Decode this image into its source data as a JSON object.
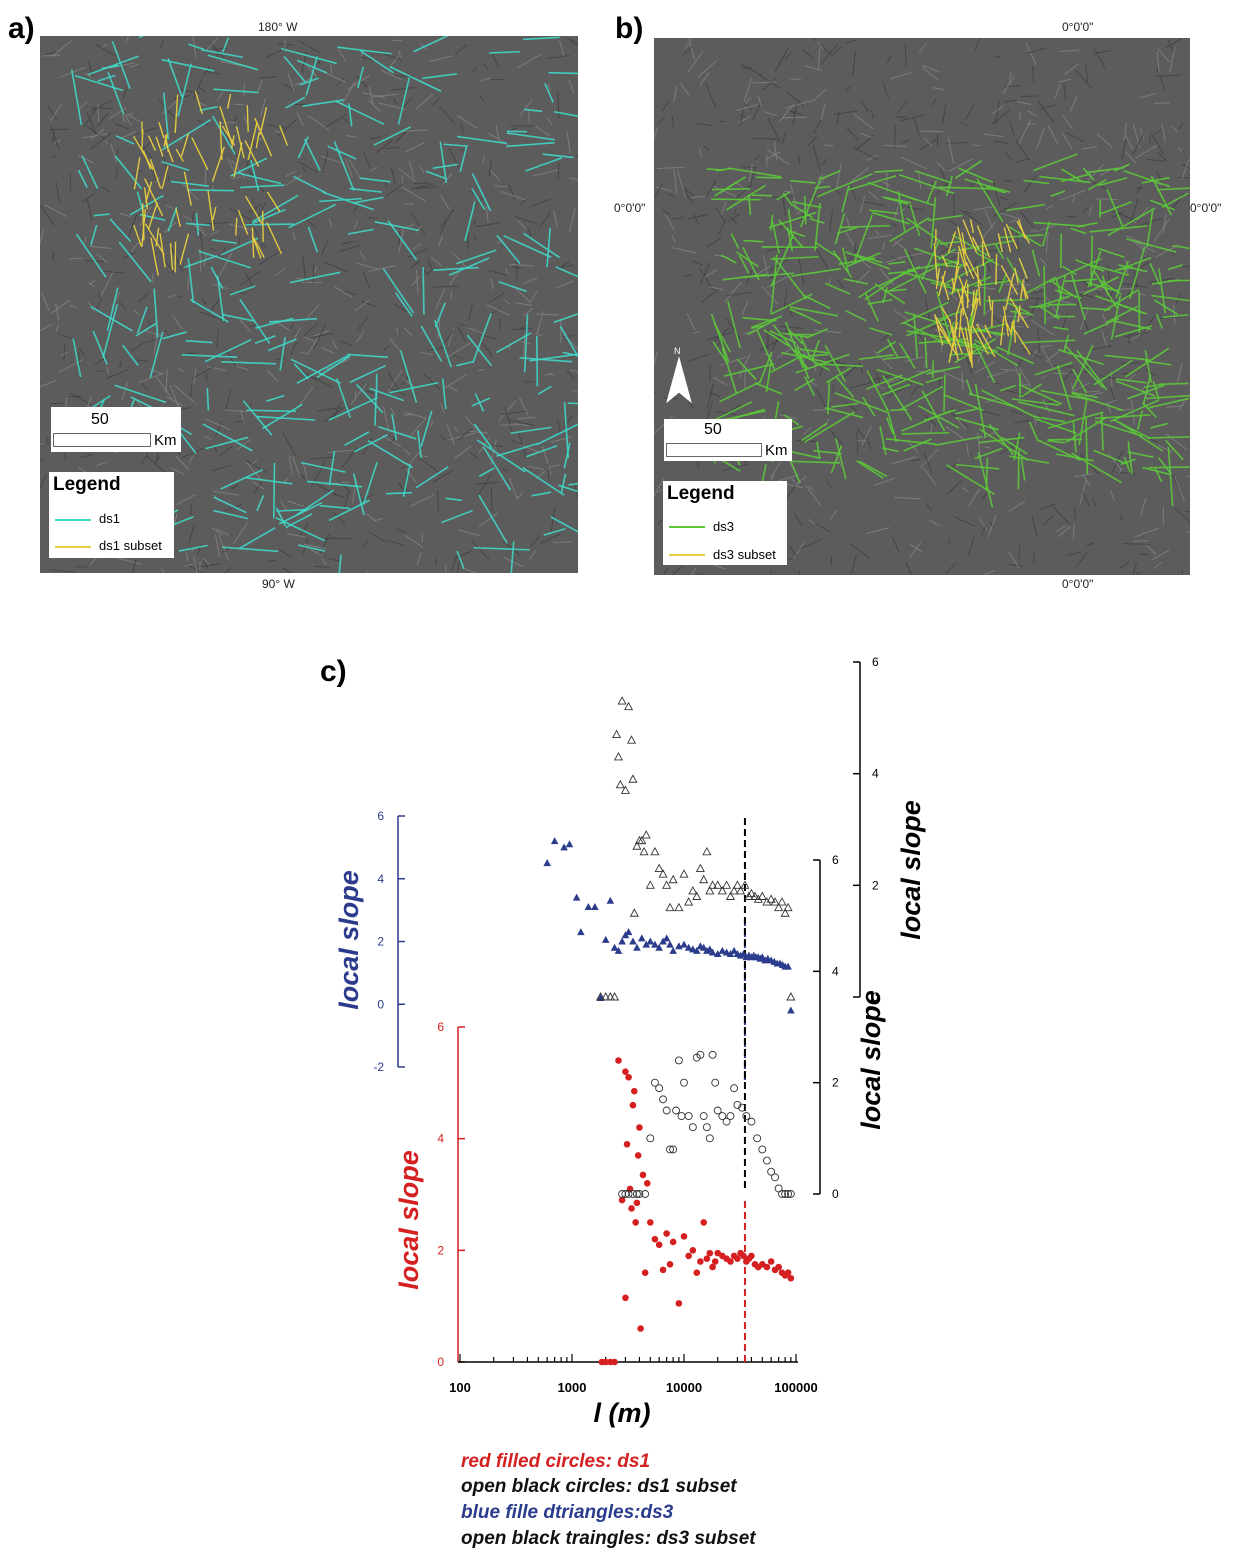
{
  "panel_a": {
    "letter": "a)",
    "top_coord": "180° W",
    "bottom_coord": "90° W",
    "scale_value": "50",
    "scale_unit": "Km",
    "legend_title": "Legend",
    "legend_items": [
      {
        "label": "ds1",
        "color": "#40d8c8"
      },
      {
        "label": "ds1 subset",
        "color": "#e8d040"
      }
    ]
  },
  "panel_b": {
    "letter": "b)",
    "top_coord": "0°0'0\"",
    "left_coord": "0°0'0\"",
    "right_coord": "0°0'0\"",
    "bottom_coord": "0°0'0\"",
    "north_label": "N",
    "scale_value": "50",
    "scale_unit": "Km",
    "legend_title": "Legend",
    "legend_items": [
      {
        "label": "ds3",
        "color": "#5cc83a"
      },
      {
        "label": "ds3 subset",
        "color": "#e8d040"
      }
    ]
  },
  "panel_c": {
    "letter": "c)",
    "caption": [
      {
        "left": "red filled circles:",
        "right": "ds1",
        "color_left": "#d42020",
        "color_right": "#d42020"
      },
      {
        "left": "open black circles:",
        "right": "ds1 subset",
        "color_left": "#111111",
        "color_right": "#111111"
      },
      {
        "left": "blue fille dtriangles:",
        "right": "ds3",
        "color_left": "#2b3c8c",
        "color_right": "#2b3c8c"
      },
      {
        "left": "open black traingles:",
        "right": "ds3 subset",
        "color_left": "#111111",
        "color_right": "#111111"
      }
    ]
  },
  "chart_data": {
    "type": "scatter",
    "xlabel": "l (m)",
    "xscale": "log",
    "xlim": [
      100,
      100000
    ],
    "xticks": [
      "100",
      "1000",
      "10000",
      "100000"
    ],
    "axes": [
      {
        "id": "red",
        "ylabel": "local slope",
        "ylim": [
          0,
          6
        ],
        "ticks": [
          "0",
          "2",
          "4",
          "6"
        ],
        "color": "#d42020"
      },
      {
        "id": "blue",
        "ylabel": "local slope",
        "ylim": [
          -2,
          6
        ],
        "ticks": [
          "-2",
          "0",
          "2",
          "4",
          "6"
        ],
        "color": "#2b3c8c"
      },
      {
        "id": "black_circles",
        "ylabel": "local slope",
        "ylim": [
          0,
          6
        ],
        "ticks": [
          "0",
          "2",
          "4",
          "6"
        ],
        "color": "#000000"
      },
      {
        "id": "black_triangles",
        "ylabel": "",
        "ylim": [
          0,
          6
        ],
        "ticks": [
          "0",
          "2",
          "4",
          "6"
        ],
        "color": "#000000"
      }
    ],
    "series": [
      {
        "name": "ds1",
        "axis": "red",
        "marker": "filled-circle",
        "color": "#d42020",
        "x": [
          1850,
          2000,
          2200,
          2400,
          2600,
          2800,
          3000,
          3000,
          3100,
          3200,
          3300,
          3400,
          3500,
          3600,
          3700,
          3800,
          3900,
          4000,
          4100,
          4300,
          4500,
          4700,
          5000,
          5500,
          6000,
          6500,
          7000,
          7500,
          8000,
          9000,
          10000,
          11000,
          12000,
          13000,
          14000,
          15000,
          16000,
          17000,
          18000,
          19000,
          20000,
          22000,
          24000,
          26000,
          28000,
          30000,
          32000,
          34000,
          36000,
          38000,
          40000,
          43000,
          46000,
          50000,
          55000,
          60000,
          65000,
          70000,
          75000,
          80000,
          85000,
          90000
        ],
        "y": [
          0,
          0,
          0,
          0,
          5.4,
          2.9,
          1.15,
          5.2,
          3.9,
          5.1,
          3.1,
          2.75,
          4.6,
          4.85,
          2.5,
          2.85,
          3.7,
          4.2,
          0.6,
          3.35,
          1.6,
          3.2,
          2.5,
          2.2,
          2.1,
          1.65,
          2.3,
          1.75,
          2.15,
          1.05,
          2.25,
          1.9,
          2.0,
          1.6,
          1.8,
          2.5,
          1.85,
          1.95,
          1.7,
          1.8,
          1.95,
          1.9,
          1.85,
          1.8,
          1.9,
          1.85,
          1.95,
          1.9,
          1.8,
          1.85,
          1.9,
          1.75,
          1.7,
          1.75,
          1.7,
          1.8,
          1.65,
          1.7,
          1.6,
          1.55,
          1.6,
          1.5
        ]
      },
      {
        "name": "ds1 subset",
        "axis": "black_circles",
        "marker": "open-circle",
        "color": "#333333",
        "x": [
          2800,
          3000,
          3200,
          3500,
          3800,
          4000,
          4500,
          5000,
          5500,
          6000,
          6500,
          7000,
          7500,
          8000,
          8500,
          9000,
          9500,
          10000,
          11000,
          12000,
          13000,
          14000,
          15000,
          16000,
          17000,
          18000,
          19000,
          20000,
          22000,
          24000,
          26000,
          28000,
          30000,
          33000,
          36000,
          40000,
          45000,
          50000,
          55000,
          60000,
          65000,
          70000,
          75000,
          80000,
          85000,
          90000
        ],
        "y": [
          0,
          0,
          0,
          0,
          0,
          0,
          0,
          1.0,
          2.0,
          1.9,
          1.7,
          1.5,
          0.8,
          0.8,
          1.5,
          2.4,
          1.4,
          2.0,
          1.4,
          1.2,
          2.45,
          2.5,
          1.4,
          1.2,
          1.0,
          2.5,
          2.0,
          1.5,
          1.4,
          1.3,
          1.4,
          1.9,
          1.6,
          1.55,
          1.4,
          1.3,
          1.0,
          0.8,
          0.6,
          0.4,
          0.3,
          0.1,
          0,
          0,
          0,
          0
        ]
      },
      {
        "name": "ds3",
        "axis": "blue",
        "marker": "filled-triangle",
        "color": "#2b3c8c",
        "x": [
          600,
          700,
          850,
          950,
          1100,
          1200,
          1400,
          1600,
          1800,
          2000,
          2200,
          2400,
          2600,
          2800,
          3000,
          3200,
          3500,
          3800,
          4200,
          4600,
          5000,
          5500,
          6000,
          6500,
          7000,
          7500,
          8000,
          9000,
          10000,
          11000,
          12000,
          13000,
          14000,
          15000,
          16000,
          17000,
          18000,
          20000,
          22000,
          24000,
          26000,
          28000,
          30000,
          32000,
          34000,
          36000,
          38000,
          40000,
          42000,
          44000,
          46000,
          48000,
          50000,
          53000,
          56000,
          60000,
          64000,
          68000,
          72000,
          76000,
          80000,
          85000,
          90000
        ],
        "y": [
          4.5,
          5.2,
          5.0,
          5.1,
          3.4,
          2.3,
          3.1,
          3.1,
          0.2,
          2.05,
          3.3,
          1.8,
          1.7,
          2.0,
          2.2,
          2.3,
          2.0,
          1.8,
          2.1,
          1.9,
          2.0,
          1.9,
          1.8,
          2.0,
          2.1,
          1.9,
          1.7,
          1.85,
          1.9,
          1.8,
          1.75,
          1.7,
          1.85,
          1.8,
          1.7,
          1.75,
          1.65,
          1.6,
          1.7,
          1.65,
          1.6,
          1.7,
          1.6,
          1.55,
          1.6,
          1.5,
          1.55,
          1.5,
          1.55,
          1.5,
          1.5,
          1.45,
          1.5,
          1.4,
          1.45,
          1.4,
          1.35,
          1.3,
          1.3,
          1.25,
          1.2,
          1.2,
          -0.2
        ]
      },
      {
        "name": "ds3 subset",
        "axis": "black_triangles",
        "marker": "open-triangle",
        "color": "#333333",
        "x": [
          1800,
          2000,
          2200,
          2400,
          2500,
          2600,
          2700,
          2800,
          3000,
          3200,
          3400,
          3500,
          3600,
          3800,
          4000,
          4200,
          4400,
          4600,
          5000,
          5500,
          6000,
          6500,
          7000,
          7500,
          8000,
          9000,
          10000,
          11000,
          12000,
          13000,
          14000,
          15000,
          16000,
          17000,
          18000,
          20000,
          22000,
          24000,
          26000,
          28000,
          30000,
          32000,
          35000,
          38000,
          40000,
          43000,
          46000,
          50000,
          55000,
          60000,
          65000,
          70000,
          75000,
          80000,
          85000,
          90000
        ],
        "y": [
          0,
          0,
          0,
          0,
          4.7,
          4.3,
          3.8,
          5.3,
          3.7,
          5.2,
          4.6,
          3.9,
          1.5,
          2.7,
          2.8,
          2.8,
          2.6,
          2.9,
          2.0,
          2.6,
          2.3,
          2.2,
          2.0,
          1.6,
          2.1,
          1.6,
          2.2,
          1.7,
          1.9,
          1.8,
          2.3,
          2.1,
          2.6,
          1.9,
          2.0,
          2.0,
          1.9,
          2.0,
          1.8,
          1.9,
          2.0,
          1.9,
          2.0,
          1.8,
          1.85,
          1.8,
          1.75,
          1.8,
          1.7,
          1.75,
          1.7,
          1.6,
          1.7,
          1.5,
          1.6,
          0.0
        ]
      }
    ],
    "reference_lines": [
      {
        "x": 35000,
        "color": "#d42020",
        "style": "dashed"
      },
      {
        "x": 35000,
        "color": "#2b3c8c",
        "style": "dashed"
      },
      {
        "x": 35000,
        "color": "#000000",
        "style": "dashed"
      }
    ]
  }
}
